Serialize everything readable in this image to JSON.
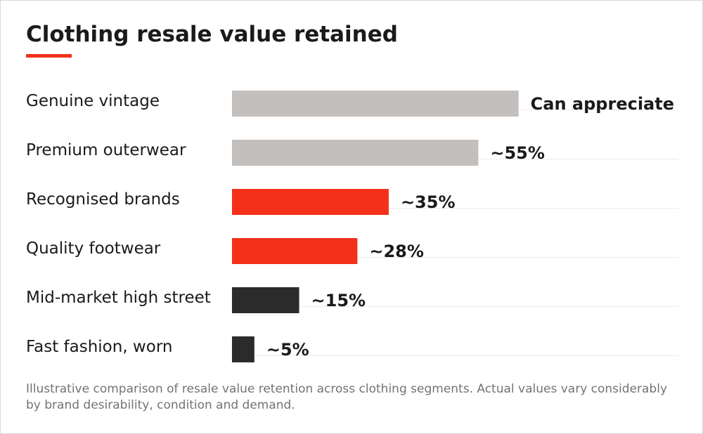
{
  "colors": {
    "accent": "#f4301a",
    "grey_bar": "#c2bfbc",
    "dark_bar": "#2b2b2b",
    "baseline": "#ececec"
  },
  "footnote": "Illustrative comparison of resale value retention across clothing segments. Actual values vary considerably by brand desirability, condition and demand.",
  "chart_data": {
    "type": "bar",
    "orientation": "horizontal",
    "title": "Clothing resale value retained",
    "xlabel": "",
    "ylabel": "",
    "xlim": [
      0,
      100
    ],
    "grid": false,
    "legend": "none",
    "categories": [
      "Genuine vintage",
      "Premium outerwear",
      "Recognised brands",
      "Quality footwear",
      "Mid-market high street",
      "Fast fashion, worn"
    ],
    "values": [
      64,
      55,
      35,
      28,
      15,
      5
    ],
    "value_labels": [
      "Can appreciate",
      "~55%",
      "~35%",
      "~28%",
      "~15%",
      "~5%"
    ],
    "bar_colors": [
      "#c2bfbc",
      "#c2bfbc",
      "#f4301a",
      "#f4301a",
      "#2b2b2b",
      "#2b2b2b"
    ]
  }
}
